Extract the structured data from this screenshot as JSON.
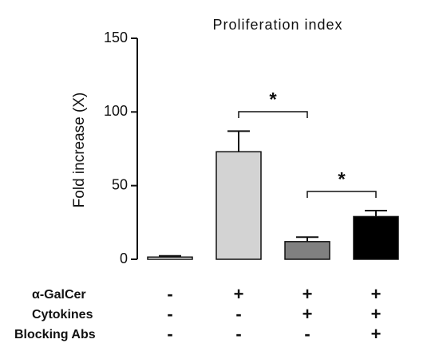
{
  "chart_data": {
    "type": "bar",
    "title": "Proliferation index",
    "y_label": "Fold increase (X)",
    "values": [
      1.5,
      73,
      12,
      29
    ],
    "errors": [
      0.8,
      14,
      3,
      4
    ],
    "colors": [
      "#ffffff",
      "#d3d3d3",
      "#808080",
      "#000000"
    ],
    "ylim": [
      0,
      150
    ],
    "yticks": [
      0,
      50,
      100,
      150
    ],
    "annotations": [
      "*",
      "*"
    ],
    "conditions": [
      {
        "label": "α-GalCer",
        "cells": [
          "-",
          "+",
          "+",
          "+"
        ]
      },
      {
        "label": "Cytokines",
        "cells": [
          "-",
          "-",
          "+",
          "+"
        ]
      },
      {
        "label": "Blocking Abs",
        "cells": [
          "-",
          "-",
          "-",
          "+"
        ]
      }
    ]
  }
}
